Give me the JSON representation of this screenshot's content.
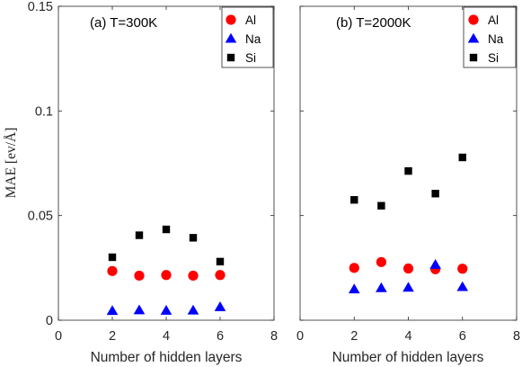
{
  "chart_data": [
    {
      "type": "scatter",
      "title": "(a) T=300K",
      "xlabel": "Number of hidden layers",
      "ylabel": "MAE [ev/Å]",
      "xlim": [
        0,
        8
      ],
      "ylim": [
        0,
        0.15
      ],
      "xticks": [
        "0",
        "2",
        "4",
        "6",
        "8"
      ],
      "yticks": [
        "0",
        "0.05",
        "0.1",
        "0.15"
      ],
      "legend_position": "top-right",
      "grid": false,
      "series": [
        {
          "name": "Al",
          "color": "#ff0000",
          "marker": "circle",
          "x": [
            2,
            3,
            4,
            5,
            6
          ],
          "y": [
            0.0235,
            0.0213,
            0.0216,
            0.0213,
            0.0216
          ]
        },
        {
          "name": "Na",
          "color": "#0000ff",
          "marker": "triangle",
          "x": [
            2,
            3,
            4,
            5,
            6
          ],
          "y": [
            0.0045,
            0.0048,
            0.0046,
            0.0047,
            0.0063
          ]
        },
        {
          "name": "Si",
          "color": "#000000",
          "marker": "square",
          "x": [
            2,
            3,
            4,
            5,
            6
          ],
          "y": [
            0.0301,
            0.0406,
            0.0434,
            0.0394,
            0.028
          ]
        }
      ]
    },
    {
      "type": "scatter",
      "title": "(b) T=2000K",
      "xlabel": "Number of hidden layers",
      "xlim": [
        0,
        8
      ],
      "ylim": [
        0,
        0.15
      ],
      "xticks": [
        "0",
        "2",
        "4",
        "6",
        "8"
      ],
      "legend_position": "top-right",
      "grid": false,
      "series": [
        {
          "name": "Al",
          "color": "#ff0000",
          "marker": "circle",
          "x": [
            2,
            3,
            4,
            5,
            6
          ],
          "y": [
            0.025,
            0.0278,
            0.0247,
            0.0244,
            0.0246
          ]
        },
        {
          "name": "Na",
          "color": "#0000ff",
          "marker": "triangle",
          "x": [
            2,
            3,
            4,
            5,
            6
          ],
          "y": [
            0.0148,
            0.0154,
            0.0156,
            0.0265,
            0.0159
          ]
        },
        {
          "name": "Si",
          "color": "#000000",
          "marker": "square",
          "x": [
            2,
            3,
            4,
            5,
            6
          ],
          "y": [
            0.0575,
            0.0547,
            0.0713,
            0.0605,
            0.0778
          ]
        }
      ]
    }
  ]
}
